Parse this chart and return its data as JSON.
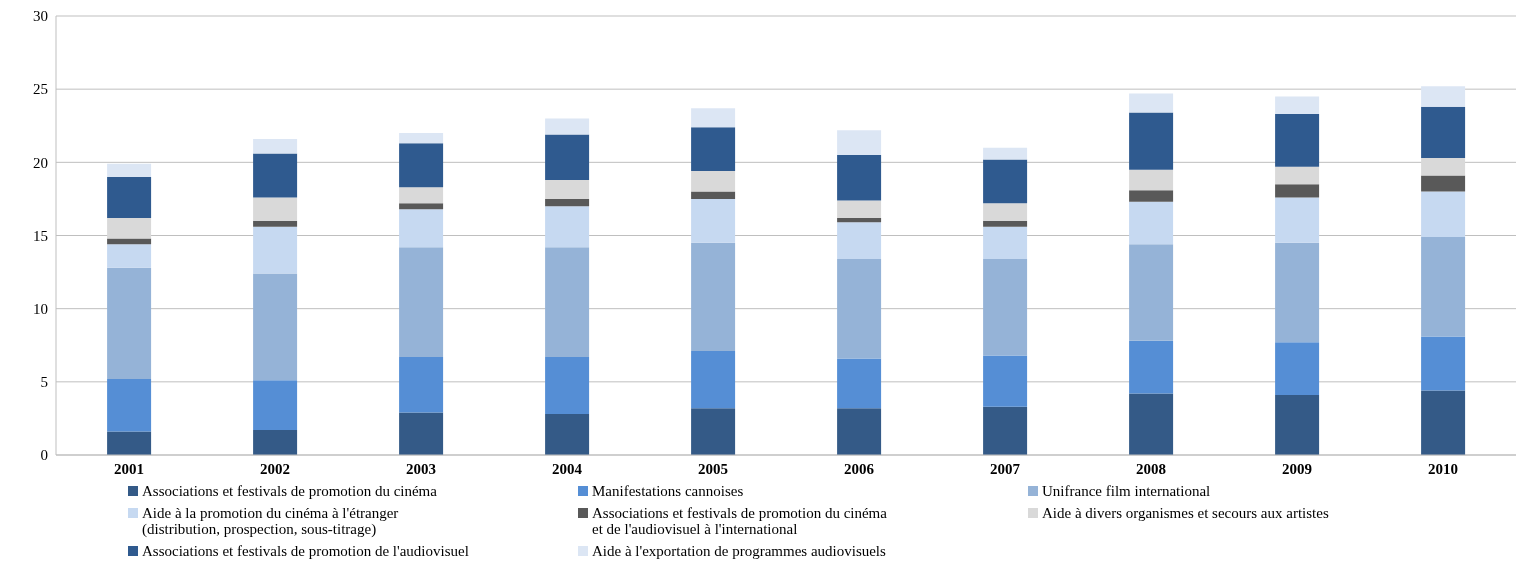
{
  "chart_data": {
    "type": "bar",
    "stacked": true,
    "categories": [
      "2001",
      "2002",
      "2003",
      "2004",
      "2005",
      "2006",
      "2007",
      "2008",
      "2009",
      "2010"
    ],
    "ylim": [
      0,
      30
    ],
    "yticks": [
      0,
      5,
      10,
      15,
      20,
      25,
      30
    ],
    "grid": "y",
    "legend": "bottom",
    "series": [
      {
        "name": "Associations et festivals de promotion du cinéma",
        "color": "#345a87",
        "values": [
          1.6,
          1.7,
          2.9,
          2.8,
          3.2,
          3.2,
          3.3,
          4.2,
          4.1,
          4.4
        ]
      },
      {
        "name": "Manifestations cannoises",
        "color": "#558ed5",
        "values": [
          3.6,
          3.4,
          3.8,
          3.9,
          3.9,
          3.4,
          3.5,
          3.6,
          3.6,
          3.7
        ]
      },
      {
        "name": "Unifrance film international",
        "color": "#95b3d7",
        "values": [
          7.6,
          7.3,
          7.5,
          7.5,
          7.4,
          6.8,
          6.6,
          6.6,
          6.8,
          6.8
        ]
      },
      {
        "name": "Aide à la promotion du cinéma à l'étranger\n(distribution, prospection, sous-titrage)",
        "color": "#c6d9f1",
        "values": [
          1.6,
          3.2,
          2.6,
          2.8,
          3.0,
          2.5,
          2.2,
          2.9,
          3.1,
          3.1
        ]
      },
      {
        "name": "Associations et festivals de promotion du cinéma\net de l'audiovisuel à l'international",
        "color": "#595959",
        "values": [
          0.4,
          0.4,
          0.4,
          0.5,
          0.5,
          0.3,
          0.4,
          0.8,
          0.9,
          1.1
        ]
      },
      {
        "name": "Aide à divers organismes et secours aux artistes",
        "color": "#d9d9d9",
        "values": [
          1.4,
          1.6,
          1.1,
          1.3,
          1.4,
          1.2,
          1.2,
          1.4,
          1.2,
          1.2
        ]
      },
      {
        "name": "Associations et festivals de promotion de l'audiovisuel",
        "color": "#2f5a8f",
        "values": [
          2.8,
          3.0,
          3.0,
          3.1,
          3.0,
          3.1,
          3.0,
          3.9,
          3.6,
          3.5
        ]
      },
      {
        "name": "Aide à l'exportation de programmes audiovisuels",
        "color": "#dce6f4",
        "values": [
          0.9,
          1.0,
          0.7,
          1.1,
          1.3,
          1.7,
          0.8,
          1.3,
          1.2,
          1.4
        ]
      }
    ]
  }
}
